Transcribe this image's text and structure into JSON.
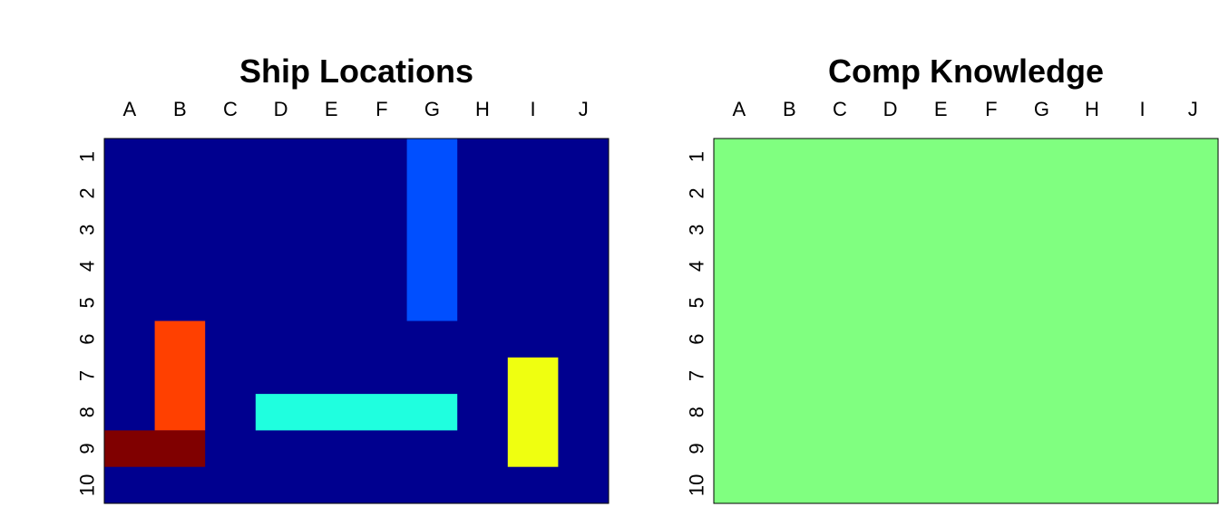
{
  "chart_data": [
    {
      "type": "heatmap",
      "title": "Ship Locations",
      "columns": [
        "A",
        "B",
        "C",
        "D",
        "E",
        "F",
        "G",
        "H",
        "I",
        "J"
      ],
      "rows": [
        "1",
        "2",
        "3",
        "4",
        "5",
        "6",
        "7",
        "8",
        "9",
        "10"
      ],
      "background_color": "#00008F",
      "ships": [
        {
          "color": "#004FFF",
          "col_start": "G",
          "col_end": "G",
          "row_start": 1,
          "row_end": 5
        },
        {
          "color": "#FF4000",
          "col_start": "B",
          "col_end": "B",
          "row_start": 6,
          "row_end": 8
        },
        {
          "color": "#1FFFDF",
          "col_start": "D",
          "col_end": "G",
          "row_start": 8,
          "row_end": 8
        },
        {
          "color": "#EFFF10",
          "col_start": "I",
          "col_end": "I",
          "row_start": 7,
          "row_end": 9
        },
        {
          "color": "#800000",
          "col_start": "A",
          "col_end": "B",
          "row_start": 9,
          "row_end": 9
        }
      ]
    },
    {
      "type": "heatmap",
      "title": "Comp Knowledge",
      "columns": [
        "A",
        "B",
        "C",
        "D",
        "E",
        "F",
        "G",
        "H",
        "I",
        "J"
      ],
      "rows": [
        "1",
        "2",
        "3",
        "4",
        "5",
        "6",
        "7",
        "8",
        "9",
        "10"
      ],
      "background_color": "#80FF80",
      "ships": []
    }
  ]
}
